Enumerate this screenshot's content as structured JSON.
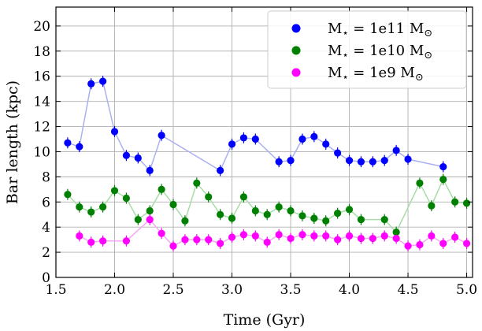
{
  "chart_data": {
    "type": "scatter",
    "title": "",
    "xlabel": "Time (Gyr)",
    "ylabel": "Bar length (kpc)",
    "xlim": [
      1.5,
      5.05
    ],
    "ylim": [
      0,
      21.5
    ],
    "xticks": [
      1.5,
      2.0,
      2.5,
      3.0,
      3.5,
      4.0,
      4.5,
      5.0
    ],
    "xtick_labels": [
      "1.5",
      "2.0",
      "2.5",
      "3.0",
      "3.5",
      "4.0",
      "4.5",
      "5.0"
    ],
    "yticks": [
      0,
      2,
      4,
      6,
      8,
      10,
      12,
      14,
      16,
      18,
      20
    ],
    "ytick_labels": [
      "0",
      "2",
      "4",
      "6",
      "8",
      "10",
      "12",
      "14",
      "16",
      "18",
      "20"
    ],
    "grid": true,
    "legend_position": "top-right",
    "series": [
      {
        "name": "M⋆ = 1e11 M⊙",
        "name_parts": [
          "M",
          "⋆",
          " = 1e11 M",
          "⊙"
        ],
        "color": "#0000ff",
        "line_color": "#aab0f0",
        "x": [
          1.6,
          1.7,
          1.8,
          1.9,
          2.0,
          2.1,
          2.2,
          2.3,
          2.4,
          2.9,
          3.0,
          3.1,
          3.2,
          3.4,
          3.5,
          3.6,
          3.7,
          3.8,
          3.9,
          4.0,
          4.1,
          4.2,
          4.3,
          4.4,
          4.5,
          4.8
        ],
        "y": [
          10.7,
          10.4,
          15.4,
          15.6,
          11.6,
          9.7,
          9.5,
          8.5,
          11.3,
          8.5,
          10.6,
          11.1,
          11.0,
          9.2,
          9.3,
          11.0,
          11.2,
          10.6,
          9.9,
          9.3,
          9.2,
          9.2,
          9.3,
          10.1,
          9.4,
          8.8
        ]
      },
      {
        "name": "M⋆ = 1e10 M⊙",
        "name_parts": [
          "M",
          "⋆",
          " = 1e10 M",
          "⊙"
        ],
        "color": "#008000",
        "line_color": "#a8dca8",
        "x": [
          1.6,
          1.7,
          1.8,
          1.9,
          2.0,
          2.1,
          2.2,
          2.3,
          2.4,
          2.5,
          2.6,
          2.7,
          2.8,
          2.9,
          3.0,
          3.1,
          3.2,
          3.3,
          3.4,
          3.5,
          3.6,
          3.7,
          3.8,
          3.9,
          4.0,
          4.1,
          4.3,
          4.4,
          4.6,
          4.7,
          4.8,
          4.9,
          5.0
        ],
        "y": [
          6.6,
          5.6,
          5.2,
          5.6,
          6.9,
          6.3,
          4.6,
          5.3,
          7.0,
          5.8,
          4.5,
          7.5,
          6.4,
          5.0,
          4.7,
          6.4,
          5.3,
          5.0,
          5.6,
          5.3,
          4.9,
          4.7,
          4.5,
          5.1,
          5.4,
          4.6,
          4.6,
          3.6,
          7.5,
          5.7,
          7.8,
          6.0,
          5.9
        ]
      },
      {
        "name": "M⋆ = 1e9 M⊙",
        "name_parts": [
          "M",
          "⋆",
          " = 1e9 M",
          "⊙"
        ],
        "color": "#ff00ff",
        "line_color": "#f4a8f4",
        "x": [
          1.7,
          1.8,
          1.9,
          2.1,
          2.3,
          2.4,
          2.5,
          2.6,
          2.7,
          2.8,
          2.9,
          3.0,
          3.1,
          3.2,
          3.3,
          3.4,
          3.5,
          3.6,
          3.7,
          3.8,
          3.9,
          4.0,
          4.1,
          4.2,
          4.3,
          4.4,
          4.5,
          4.6,
          4.7,
          4.8,
          4.9,
          5.0
        ],
        "y": [
          3.3,
          2.8,
          2.9,
          2.9,
          4.6,
          3.5,
          2.5,
          3.0,
          3.0,
          3.0,
          2.7,
          3.2,
          3.4,
          3.3,
          2.8,
          3.4,
          3.1,
          3.4,
          3.3,
          3.3,
          3.0,
          3.3,
          3.1,
          3.1,
          3.3,
          3.1,
          2.5,
          2.6,
          3.3,
          2.7,
          3.2,
          2.7
        ]
      }
    ]
  }
}
